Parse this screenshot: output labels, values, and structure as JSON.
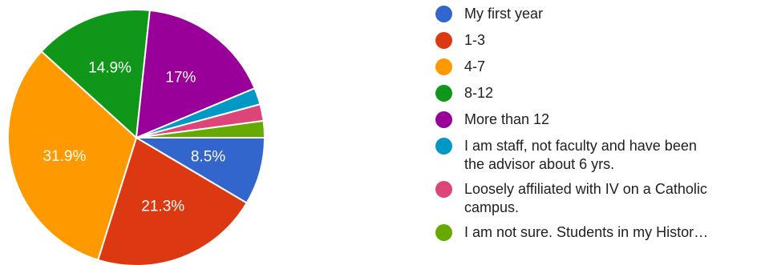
{
  "chart_data": {
    "type": "pie",
    "title": "",
    "slices": [
      {
        "label": "My first year",
        "value": 8.5,
        "display": "8.5%",
        "color": "#3366cc"
      },
      {
        "label": "1-3",
        "value": 21.3,
        "display": "21.3%",
        "color": "#dc3912"
      },
      {
        "label": "4-7",
        "value": 31.9,
        "display": "31.9%",
        "color": "#ff9900"
      },
      {
        "label": "8-12",
        "value": 14.9,
        "display": "14.9%",
        "color": "#109618"
      },
      {
        "label": "More than 12",
        "value": 17.0,
        "display": "17%",
        "color": "#990099"
      },
      {
        "label": "I am staff, not faculty and have been the advisor about 6 yrs.",
        "value": 2.1,
        "display": "",
        "color": "#0099c6"
      },
      {
        "label": "Loosely affiliated with IV on a Catholic campus.",
        "value": 2.1,
        "display": "",
        "color": "#dd4477"
      },
      {
        "label": "I am not sure. Students in my Histor…",
        "value": 2.1,
        "display": "",
        "color": "#66aa00"
      }
    ],
    "legend": {
      "placement": "right",
      "items": [
        {
          "lines": [
            "My first year"
          ]
        },
        {
          "lines": [
            "1-3"
          ]
        },
        {
          "lines": [
            "4-7"
          ]
        },
        {
          "lines": [
            "8-12"
          ]
        },
        {
          "lines": [
            "More than 12"
          ]
        },
        {
          "lines": [
            "I am staff, not faculty and have been",
            "the advisor about 6 yrs."
          ]
        },
        {
          "lines": [
            "Loosely affiliated with IV on a Catholic",
            "campus."
          ]
        },
        {
          "lines": [
            "I am not sure. Students in my Histor…"
          ]
        }
      ]
    }
  }
}
